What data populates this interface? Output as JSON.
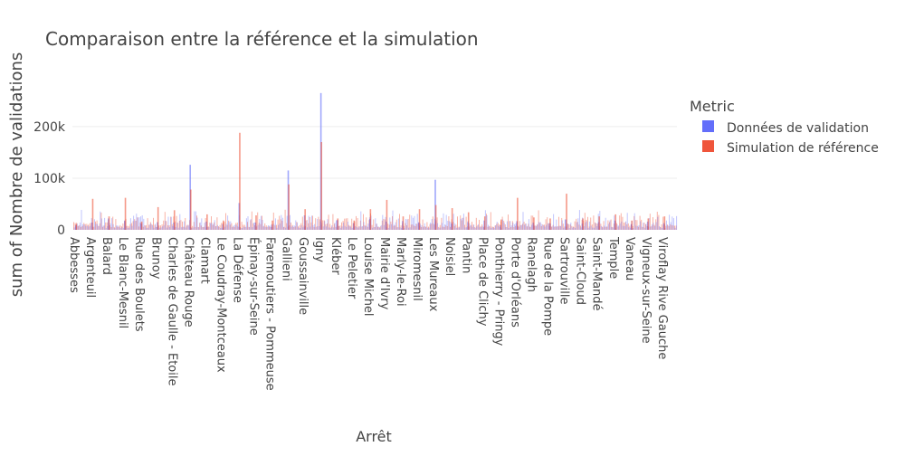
{
  "chart_data": {
    "type": "bar",
    "title": "Comparaison entre la référence et la simulation",
    "xlabel": "Arrêt",
    "ylabel": "sum of Nombre de validations",
    "ylim": [
      0,
      270000
    ],
    "y_ticks": [
      {
        "value": 0,
        "label": "0"
      },
      {
        "value": 100000,
        "label": "100k"
      },
      {
        "value": 200000,
        "label": "200k"
      }
    ],
    "grid": true,
    "barmode": "overlay",
    "legend": {
      "title": "Metric",
      "placement": "top-right",
      "entries": [
        {
          "name": "Données de validation",
          "color": "#636efa"
        },
        {
          "name": "Simulation de référence",
          "color": "#ef553b"
        }
      ]
    },
    "categories": [
      "Abbesses",
      "Argenteuil",
      "Balard",
      "Le Blanc-Mesnil",
      "Rue des Boulets",
      "Brunoy",
      "Charles de Gaulle - Etoile",
      "Château Rouge",
      "Clamart",
      "Le Coudray-Montceaux",
      "La Défense",
      "Épinay-sur-Seine",
      "Faremoutiers - Pommeuse",
      "Gallieni",
      "Goussainville",
      "Igny",
      "Kléber",
      "Le Peletier",
      "Louise Michel",
      "Mairie d'Ivry",
      "Marly-le-Roi",
      "Miromesnil",
      "Les Mureaux",
      "Noisiel",
      "Pantin",
      "Place de Clichy",
      "Ponthierry - Pringy",
      "Porte d'Orléans",
      "Ranelagh",
      "Rue de la Pompe",
      "Sartrouville",
      "Saint-Cloud",
      "Saint-Mandé",
      "Temple",
      "Vaneau",
      "Vigneux-sur-Seine",
      "Viroflay Rive Gauche"
    ],
    "series": [
      {
        "name": "Données de validation",
        "color": "#636efa",
        "values": [
          9000,
          14000,
          22000,
          18000,
          12000,
          15000,
          14000,
          126000,
          16000,
          11000,
          52000,
          14000,
          10000,
          115000,
          28000,
          265000,
          19000,
          13000,
          21000,
          16000,
          17000,
          14000,
          97000,
          12000,
          15000,
          18000,
          9000,
          17000,
          14000,
          13000,
          20000,
          12000,
          15000,
          18000,
          11000,
          16000,
          13000
        ]
      },
      {
        "name": "Simulation de référence",
        "color": "#ef553b",
        "values": [
          11000,
          60000,
          26000,
          62000,
          16000,
          44000,
          38000,
          78000,
          30000,
          18000,
          188000,
          28000,
          18000,
          88000,
          40000,
          170000,
          22000,
          18000,
          40000,
          58000,
          26000,
          40000,
          48000,
          42000,
          34000,
          26000,
          20000,
          62000,
          24000,
          22000,
          70000,
          22000,
          26000,
          30000,
          18000,
          22000,
          26000
        ]
      }
    ]
  }
}
